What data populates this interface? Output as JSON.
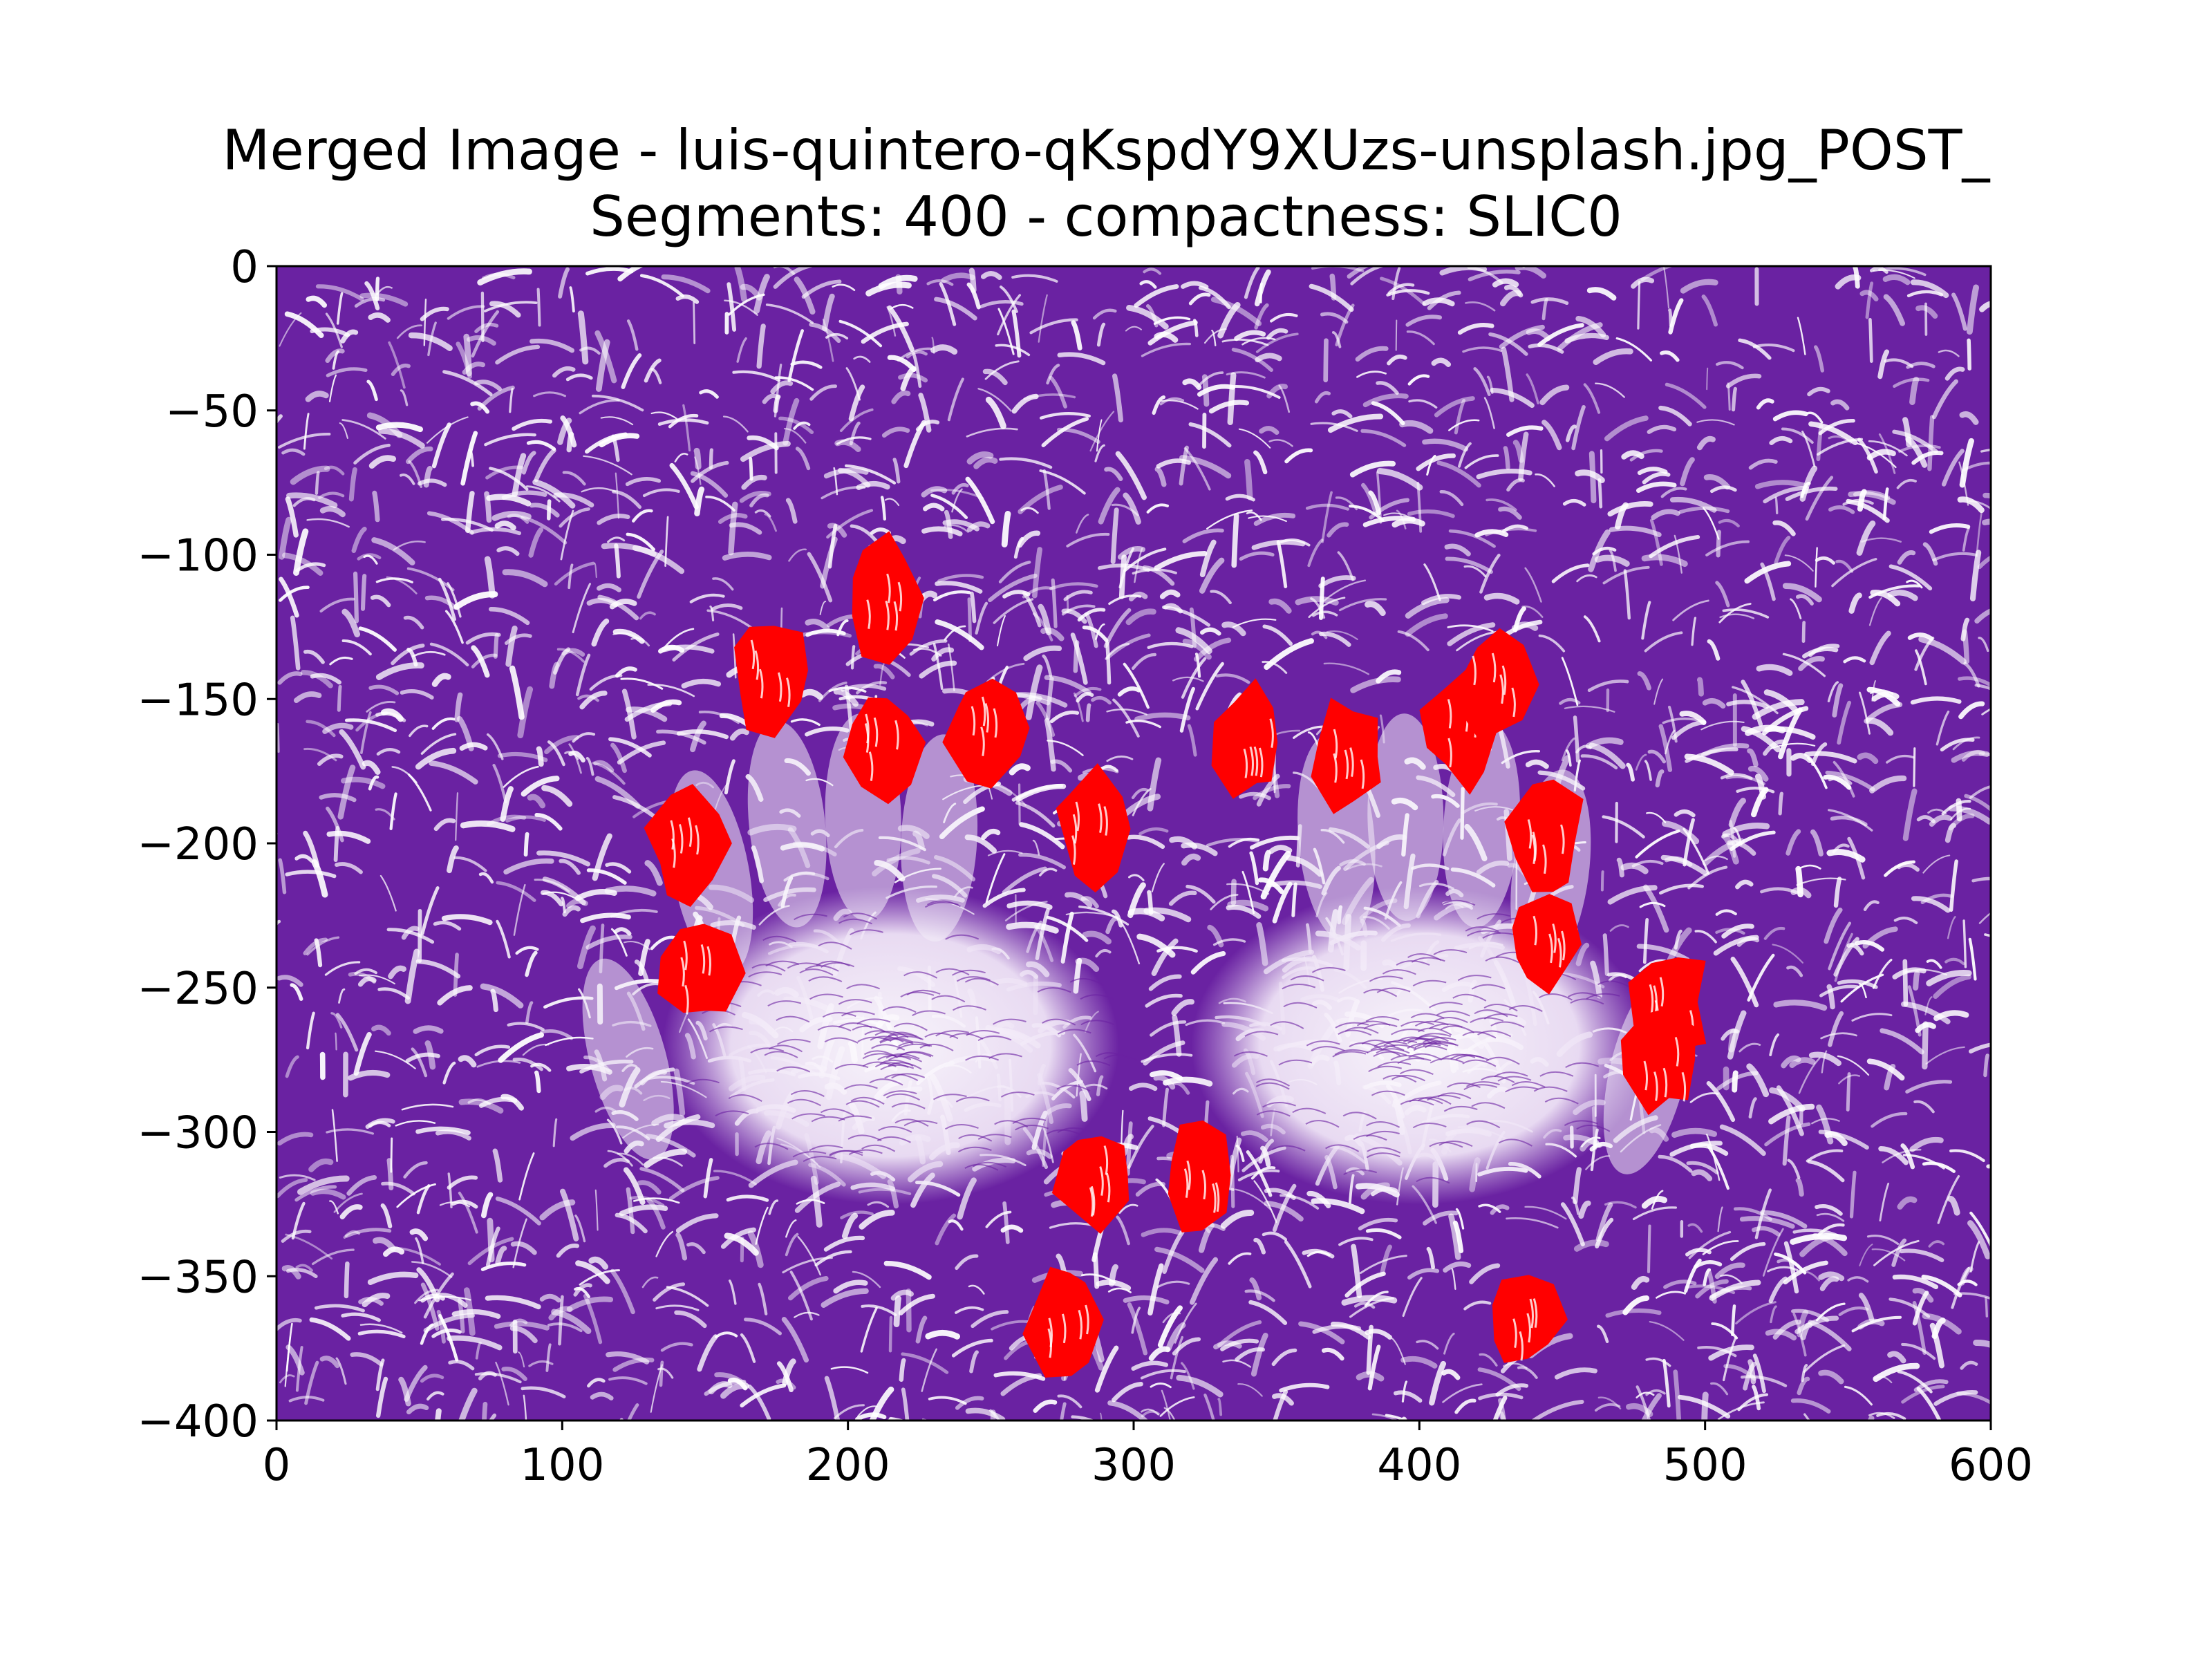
{
  "chart_data": {
    "type": "heatmap",
    "title": "Merged Image - luis-quintero-qKspdY9XUzs-unsplash.jpg_POST_\nSegments: 400 - compactness: SLIC0",
    "xlabel": "",
    "ylabel": "",
    "xlim": [
      0,
      600
    ],
    "ylim": [
      -400,
      0
    ],
    "x_ticks": [
      0,
      100,
      200,
      300,
      400,
      500,
      600
    ],
    "y_ticks": [
      0,
      -50,
      -100,
      -150,
      -200,
      -250,
      -300,
      -350,
      -400
    ],
    "x_tick_labels": [
      "0",
      "100",
      "200",
      "300",
      "400",
      "500",
      "600"
    ],
    "y_tick_labels": [
      "0",
      "−50",
      "−100",
      "−150",
      "−200",
      "−250",
      "−300",
      "−350",
      "−400"
    ],
    "grid": false,
    "colors": {
      "background": "#6a22a2",
      "stroke": "#ffffff",
      "highlight": "#ff0000",
      "palm_light": "#f3ecf8"
    },
    "hands": [
      {
        "cx": 215,
        "cy": -270
      },
      {
        "cx": 400,
        "cy": -270
      }
    ],
    "highlighted_segments": [
      {
        "x": 172,
        "y": -140
      },
      {
        "x": 212,
        "y": -115
      },
      {
        "x": 212,
        "y": -165
      },
      {
        "x": 248,
        "y": -160
      },
      {
        "x": 285,
        "y": -195
      },
      {
        "x": 143,
        "y": -200
      },
      {
        "x": 148,
        "y": -245
      },
      {
        "x": 341,
        "y": -165
      },
      {
        "x": 375,
        "y": -170
      },
      {
        "x": 415,
        "y": -160
      },
      {
        "x": 426,
        "y": -145
      },
      {
        "x": 445,
        "y": -200
      },
      {
        "x": 443,
        "y": -235
      },
      {
        "x": 488,
        "y": -255
      },
      {
        "x": 485,
        "y": -275
      },
      {
        "x": 286,
        "y": -315
      },
      {
        "x": 322,
        "y": -315
      },
      {
        "x": 276,
        "y": -365
      },
      {
        "x": 436,
        "y": -365
      }
    ]
  }
}
